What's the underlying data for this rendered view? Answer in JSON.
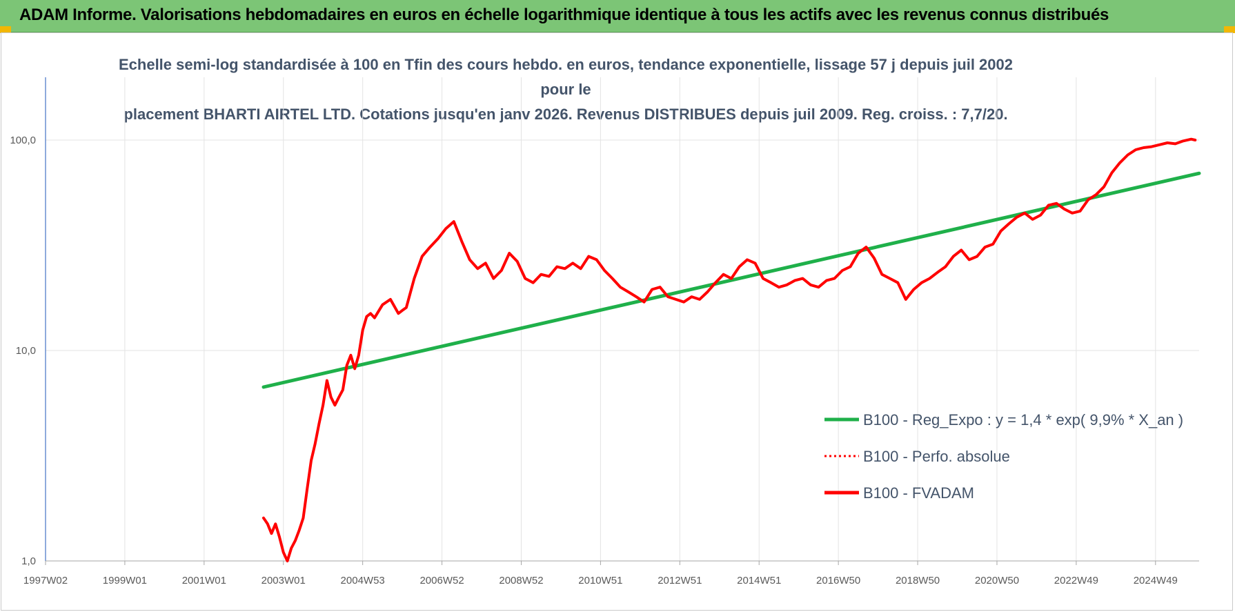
{
  "header": {
    "title": "ADAM Informe. Valorisations hebdomadaires en euros en échelle logarithmique identique à tous les actifs avec les revenus connus distribués"
  },
  "colors": {
    "header_bg": "#7cc576",
    "corner_accent": "#f2b705",
    "regression": "#1fb04a",
    "fvadam": "#ff0000",
    "perfo": "#ff0000",
    "text": "#44546a"
  },
  "chart_data": {
    "type": "line",
    "title_line1": "Echelle semi-log standardisée à 100 en Tfin des cours hebdo. en euros, tendance exponentielle, lissage 57 j depuis juil 2002 pour le",
    "title_line2": "placement BHARTI AIRTEL LTD. Cotations jusqu'en janv 2026. Revenus DISTRIBUES depuis juil 2009. Reg. croiss. : 7,7/20.",
    "y_scale": "log",
    "ylim": [
      1,
      100
    ],
    "y_ticks": [
      1,
      10,
      100
    ],
    "y_tick_labels": [
      "1,0",
      "10,0",
      "100,0"
    ],
    "x_range": [
      1997.0,
      2026.1
    ],
    "x_ticks": [
      1997.0,
      1999.0,
      2001.0,
      2003.0,
      2005.0,
      2007.0,
      2009.0,
      2011.0,
      2013.0,
      2015.0,
      2017.0,
      2019.0,
      2021.0,
      2023.0,
      2025.0
    ],
    "x_tick_labels": [
      "1997W02",
      "1999W01",
      "2001W01",
      "2003W01",
      "2004W53",
      "2006W52",
      "2008W52",
      "2010W51",
      "2012W51",
      "2014W51",
      "2016W50",
      "2018W50",
      "2020W50",
      "2022W49",
      "2024W49"
    ],
    "grid": true,
    "legend_position": "right",
    "legend": [
      {
        "key": "regression",
        "label": "B100 - Reg_Expo : y = 1,4 * exp( 9,9% *  X_an )",
        "style": "solid"
      },
      {
        "key": "perfo",
        "label": "B100 - Perfo. absolue",
        "style": "dotted"
      },
      {
        "key": "fvadam",
        "label": "B100 - FVADAM",
        "style": "solid"
      }
    ],
    "series": [
      {
        "key": "regression",
        "name": "B100 - Reg_Expo : y = 1,4 * exp( 9,9% *  X_an )",
        "x": [
          2002.5,
          2026.1
        ],
        "y": [
          6.7,
          69.5
        ]
      },
      {
        "key": "fvadam",
        "name": "B100 - FVADAM",
        "x": [
          2002.5,
          2002.6,
          2002.7,
          2002.8,
          2002.9,
          2003.0,
          2003.1,
          2003.2,
          2003.3,
          2003.4,
          2003.5,
          2003.6,
          2003.7,
          2003.8,
          2003.9,
          2004.0,
          2004.1,
          2004.2,
          2004.3,
          2004.4,
          2004.5,
          2004.6,
          2004.7,
          2004.8,
          2004.9,
          2005.0,
          2005.1,
          2005.2,
          2005.3,
          2005.5,
          2005.7,
          2005.9,
          2006.0,
          2006.1,
          2006.3,
          2006.5,
          2006.7,
          2006.9,
          2007.1,
          2007.3,
          2007.5,
          2007.7,
          2007.9,
          2008.1,
          2008.3,
          2008.5,
          2008.7,
          2008.9,
          2009.1,
          2009.3,
          2009.5,
          2009.7,
          2009.9,
          2010.1,
          2010.3,
          2010.5,
          2010.7,
          2010.9,
          2011.1,
          2011.3,
          2011.5,
          2011.7,
          2011.9,
          2012.1,
          2012.3,
          2012.5,
          2012.7,
          2012.9,
          2013.1,
          2013.3,
          2013.5,
          2013.7,
          2013.9,
          2014.1,
          2014.3,
          2014.5,
          2014.7,
          2014.9,
          2015.1,
          2015.3,
          2015.5,
          2015.7,
          2015.9,
          2016.1,
          2016.3,
          2016.5,
          2016.7,
          2016.9,
          2017.1,
          2017.3,
          2017.5,
          2017.7,
          2017.9,
          2018.1,
          2018.3,
          2018.5,
          2018.7,
          2018.9,
          2019.1,
          2019.3,
          2019.5,
          2019.7,
          2019.9,
          2020.1,
          2020.3,
          2020.5,
          2020.7,
          2020.9,
          2021.1,
          2021.3,
          2021.5,
          2021.7,
          2021.9,
          2022.1,
          2022.3,
          2022.5,
          2022.7,
          2022.9,
          2023.1,
          2023.3,
          2023.5,
          2023.7,
          2023.9,
          2024.1,
          2024.3,
          2024.5,
          2024.7,
          2024.9,
          2025.1,
          2025.3,
          2025.5,
          2025.7,
          2025.9,
          2026.0
        ],
        "y": [
          1.6,
          1.5,
          1.35,
          1.5,
          1.3,
          1.1,
          1.0,
          1.15,
          1.25,
          1.4,
          1.6,
          2.2,
          3.0,
          3.6,
          4.5,
          5.5,
          7.2,
          6.0,
          5.5,
          6.0,
          6.5,
          8.5,
          9.5,
          8.2,
          9.5,
          12.5,
          14.5,
          15.0,
          14.3,
          16.5,
          17.5,
          15.0,
          15.5,
          16.0,
          22.0,
          28.0,
          31.0,
          34.0,
          38.0,
          41.0,
          33.0,
          27.0,
          24.5,
          26.0,
          22.0,
          24.0,
          29.0,
          26.5,
          22.0,
          21.0,
          23.0,
          22.5,
          25.0,
          24.5,
          26.0,
          24.5,
          28.0,
          27.0,
          24.0,
          22.0,
          20.0,
          19.0,
          18.0,
          17.0,
          19.5,
          20.0,
          18.0,
          17.5,
          17.0,
          18.0,
          17.5,
          19.0,
          21.0,
          23.0,
          22.0,
          25.0,
          27.0,
          26.0,
          22.0,
          21.0,
          20.0,
          20.5,
          21.5,
          22.0,
          20.5,
          20.0,
          21.5,
          22.0,
          24.0,
          25.0,
          29.0,
          31.0,
          27.5,
          23.0,
          22.0,
          21.0,
          17.5,
          19.5,
          21.0,
          22.0,
          23.5,
          25.0,
          28.0,
          30.0,
          27.0,
          28.0,
          31.0,
          32.0,
          37.0,
          40.0,
          43.0,
          45.0,
          42.0,
          44.0,
          49.0,
          50.0,
          47.0,
          45.0,
          46.0,
          52.0,
          55.0,
          60.0,
          70.0,
          78.0,
          85.0,
          90.0,
          92.0,
          93.0,
          95.0,
          97.0,
          96.0,
          99.0,
          101.0,
          100.0
        ]
      }
    ]
  }
}
